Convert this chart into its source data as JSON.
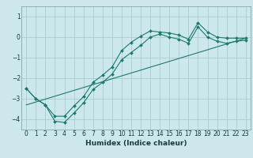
{
  "title": "",
  "xlabel": "Humidex (Indice chaleur)",
  "ylabel": "",
  "bg_color": "#cce8ec",
  "plot_bg_color": "#cce8ec",
  "grid_color": "#aaccd0",
  "line_color": "#1a7a6e",
  "ylim": [
    -4.5,
    1.5
  ],
  "xlim": [
    -0.5,
    23.5
  ],
  "yticks": [
    1,
    0,
    -1,
    -2,
    -3,
    -4
  ],
  "xticks": [
    0,
    1,
    2,
    3,
    4,
    5,
    6,
    7,
    8,
    9,
    10,
    11,
    12,
    13,
    14,
    15,
    16,
    17,
    18,
    19,
    20,
    21,
    22,
    23
  ],
  "curve1_x": [
    0,
    1,
    2,
    3,
    4,
    5,
    6,
    7,
    8,
    9,
    10,
    11,
    12,
    13,
    14,
    15,
    16,
    17,
    18,
    19,
    20,
    21,
    22,
    23
  ],
  "curve1_y": [
    -2.5,
    -3.0,
    -3.3,
    -3.85,
    -3.85,
    -3.35,
    -2.9,
    -2.2,
    -1.85,
    -1.45,
    -0.65,
    -0.25,
    0.05,
    0.3,
    0.25,
    0.2,
    0.1,
    -0.1,
    0.7,
    0.25,
    -0.0,
    -0.05,
    -0.05,
    -0.05
  ],
  "curve2_x": [
    0,
    1,
    2,
    3,
    4,
    5,
    6,
    7,
    8,
    9,
    10,
    11,
    12,
    13,
    14,
    15,
    16,
    17,
    18,
    19,
    20,
    21,
    22,
    23
  ],
  "curve2_y": [
    -2.5,
    -3.0,
    -3.3,
    -4.1,
    -4.15,
    -3.7,
    -3.2,
    -2.55,
    -2.2,
    -1.8,
    -1.1,
    -0.75,
    -0.4,
    0.0,
    0.15,
    0.0,
    -0.1,
    -0.3,
    0.5,
    0.0,
    -0.2,
    -0.3,
    -0.2,
    -0.15
  ],
  "line_x": [
    0,
    23
  ],
  "line_y": [
    -3.3,
    -0.05
  ],
  "tick_fontsize": 5.5,
  "xlabel_fontsize": 6.5,
  "xlabel_fontweight": "bold"
}
